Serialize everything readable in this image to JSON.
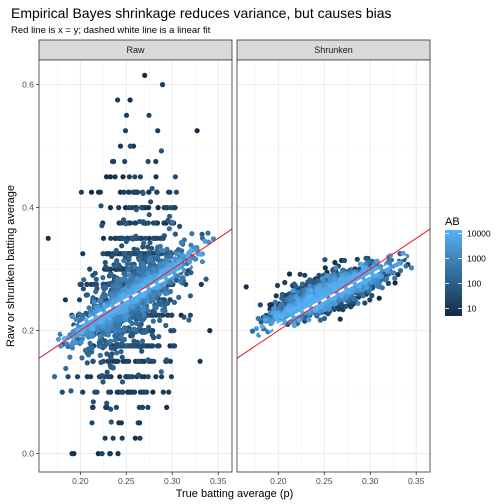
{
  "chart_data": {
    "type": "scatter",
    "title": "Empirical Bayes shrinkage reduces variance, but causes bias",
    "subtitle": "Red line is x = y; dashed white line is a linear fit",
    "xlabel": "True batting average (p)",
    "ylabel": "Raw or shrunken batting average",
    "xlim": [
      0.155,
      0.365
    ],
    "ylim": [
      -0.03,
      0.64
    ],
    "x_ticks": [
      0.2,
      0.25,
      0.3,
      0.35
    ],
    "x_tick_labels": [
      "0.20",
      "0.25",
      "0.30",
      "0.35"
    ],
    "y_ticks": [
      0.0,
      0.2,
      0.4,
      0.6
    ],
    "y_tick_labels": [
      "0.0",
      "0.2",
      "0.4",
      "0.6"
    ],
    "grid": true,
    "facets": [
      {
        "name": "Raw",
        "x_range": [
          0.16,
          0.36
        ],
        "x_spread": 0.027,
        "raw_sd_base": 0.075,
        "identity_line": {
          "slope": 1,
          "intercept": 0,
          "color": "#e8262f"
        },
        "linear_fit": {
          "slope": 0.79,
          "intercept": 0.053,
          "x_range": [
            0.17,
            0.34
          ],
          "style": "dashed",
          "color": "#ffffff"
        },
        "point_count": 2600
      },
      {
        "name": "Shrunken",
        "x_range": [
          0.16,
          0.36
        ],
        "x_spread": 0.027,
        "shrunk_center": {
          "slope": 0.32,
          "intercept": 0.183
        },
        "shrunk_sd": 0.018,
        "identity_line": {
          "slope": 1,
          "intercept": 0,
          "color": "#e8262f"
        },
        "linear_fit": {
          "slope": 0.8,
          "intercept": 0.05,
          "x_range": [
            0.17,
            0.34
          ],
          "style": "dashed",
          "color": "#ffffff"
        },
        "point_count": 2600
      }
    ],
    "color_scale": {
      "variable": "AB",
      "type": "log10 continuous",
      "range": [
        5,
        14000
      ],
      "breaks": [
        10,
        100,
        1000,
        10000
      ],
      "break_labels": [
        "10",
        "100",
        "1000",
        "10000"
      ],
      "low_color": "#132b43",
      "high_color": "#56b1f7"
    },
    "legend_position": "right"
  }
}
